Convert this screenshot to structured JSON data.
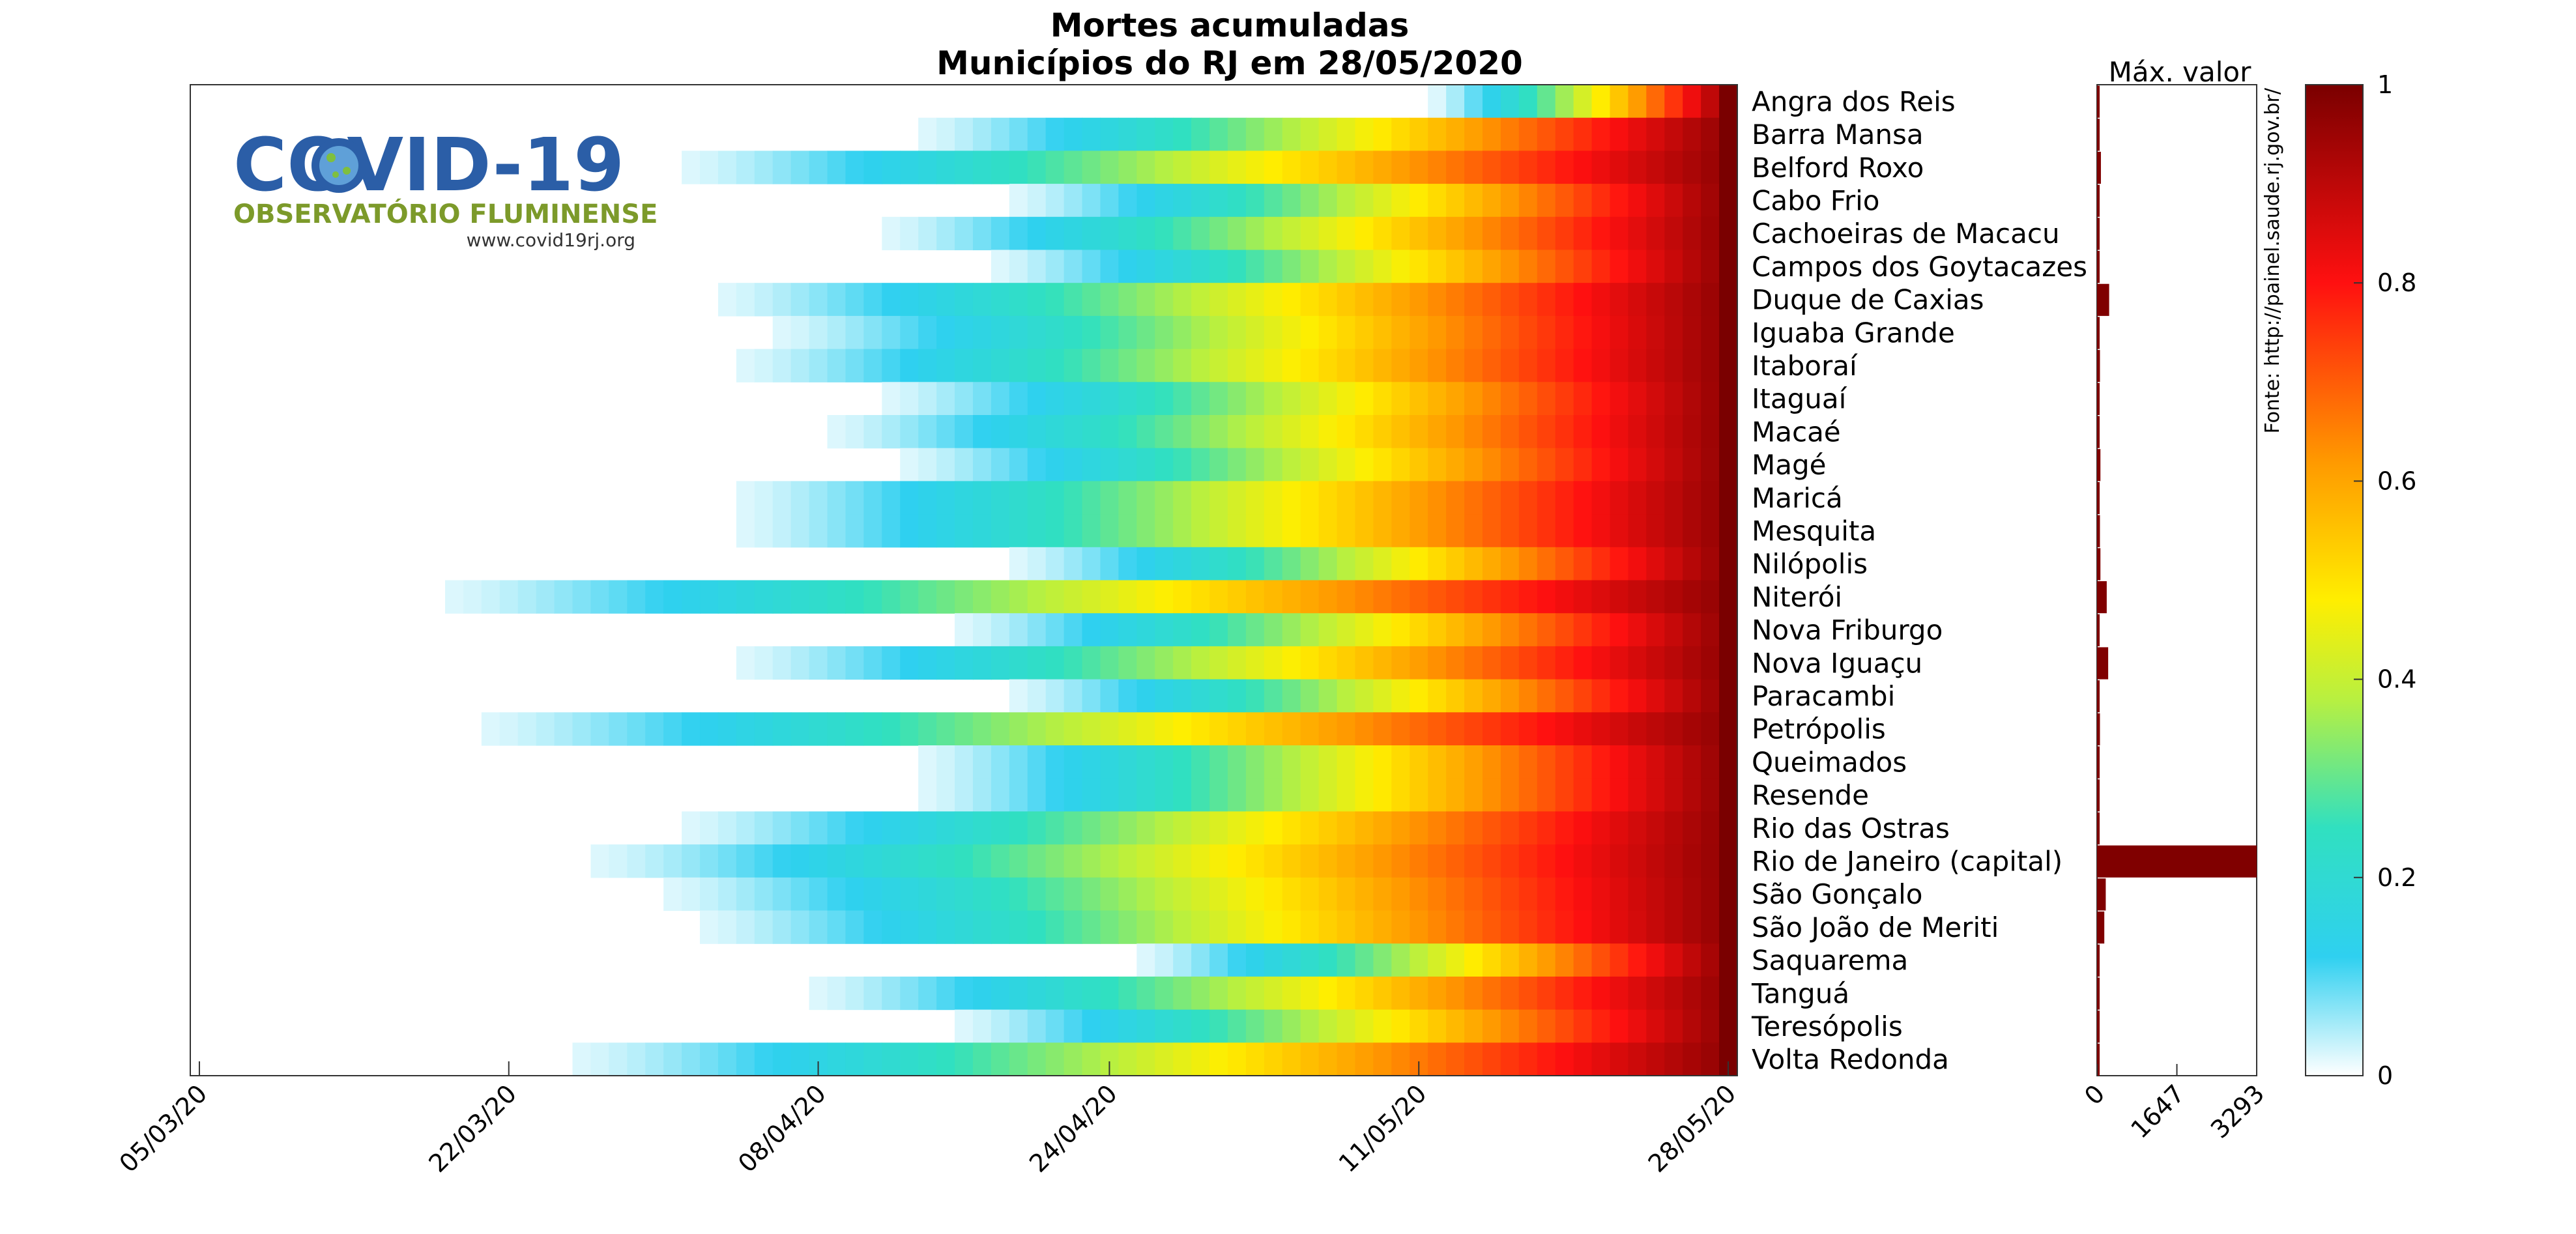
{
  "chart_data": {
    "type": "heatmap",
    "title": "Mortes acumuladas",
    "subtitle": "Municípios do RJ em 28/05/2020",
    "x_start_date": "05/03/20",
    "x_end_date": "28/05/20",
    "x_ticks": [
      "05/03/20",
      "22/03/20",
      "08/04/20",
      "24/04/20",
      "11/05/20",
      "28/05/20"
    ],
    "colorbar": {
      "min": 0,
      "max": 1,
      "ticks": [
        "0",
        "0.2",
        "0.4",
        "0.6",
        "0.8",
        "1"
      ]
    },
    "max_panel": {
      "title": "Máx. valor",
      "ticks": [
        "0",
        "1647",
        "3293"
      ],
      "xlim": [
        0,
        3293
      ],
      "bar_color": "#800000"
    },
    "source_text": "Fonte: http://painel.saude.rj.gov.br/",
    "categories": [
      "Angra dos Reis",
      "Barra Mansa",
      "Belford Roxo",
      "Cabo Frio",
      "Cachoeiras de Macacu",
      "Campos dos Goytacazes",
      "Duque de Caxias",
      "Iguaba Grande",
      "Itaboraí",
      "Itaguaí",
      "Macaé",
      "Magé",
      "Maricá",
      "Mesquita",
      "Nilópolis",
      "Niterói",
      "Nova Friburgo",
      "Nova Iguaçu",
      "Paracambi",
      "Petrópolis",
      "Queimados",
      "Resende",
      "Rio das Ostras",
      "Rio de Janeiro (capital)",
      "São Gonçalo",
      "São João de Meriti",
      "Saquarema",
      "Tanguá",
      "Teresópolis",
      "Volta Redonda"
    ],
    "series": [
      {
        "name": "Angra dos Reis",
        "first_date": "12/05/20",
        "max_value": 10
      },
      {
        "name": "Barra Mansa",
        "first_date": "14/04/20",
        "max_value": 6
      },
      {
        "name": "Belford Roxo",
        "first_date": "01/04/20",
        "max_value": 80
      },
      {
        "name": "Cabo Frio",
        "first_date": "19/04/20",
        "max_value": 12
      },
      {
        "name": "Cachoeiras de Macacu",
        "first_date": "12/04/20",
        "max_value": 8
      },
      {
        "name": "Campos dos Goytacazes",
        "first_date": "18/04/20",
        "max_value": 40
      },
      {
        "name": "Duque de Caxias",
        "first_date": "03/04/20",
        "max_value": 250
      },
      {
        "name": "Iguaba Grande",
        "first_date": "06/04/20",
        "max_value": 3
      },
      {
        "name": "Itaboraí",
        "first_date": "04/04/20",
        "max_value": 60
      },
      {
        "name": "Itaguaí",
        "first_date": "12/04/20",
        "max_value": 30
      },
      {
        "name": "Macaé",
        "first_date": "09/04/20",
        "max_value": 35
      },
      {
        "name": "Magé",
        "first_date": "13/04/20",
        "max_value": 70
      },
      {
        "name": "Maricá",
        "first_date": "04/04/20",
        "max_value": 40
      },
      {
        "name": "Mesquita",
        "first_date": "04/04/20",
        "max_value": 60
      },
      {
        "name": "Nilópolis",
        "first_date": "19/04/20",
        "max_value": 70
      },
      {
        "name": "Niterói",
        "first_date": "19/03/20",
        "max_value": 200
      },
      {
        "name": "Nova Friburgo",
        "first_date": "16/04/20",
        "max_value": 30
      },
      {
        "name": "Nova Iguaçu",
        "first_date": "04/04/20",
        "max_value": 230
      },
      {
        "name": "Paracambi",
        "first_date": "19/04/20",
        "max_value": 10
      },
      {
        "name": "Petrópolis",
        "first_date": "21/03/20",
        "max_value": 60
      },
      {
        "name": "Queimados",
        "first_date": "14/04/20",
        "max_value": 50
      },
      {
        "name": "Resende",
        "first_date": "14/04/20",
        "max_value": 15
      },
      {
        "name": "Rio das Ostras",
        "first_date": "01/04/20",
        "max_value": 15
      },
      {
        "name": "Rio de Janeiro (capital)",
        "first_date": "27/03/20",
        "max_value": 3293
      },
      {
        "name": "São Gonçalo",
        "first_date": "31/03/20",
        "max_value": 180
      },
      {
        "name": "São João de Meriti",
        "first_date": "02/04/20",
        "max_value": 150
      },
      {
        "name": "Saquarema",
        "first_date": "26/04/20",
        "max_value": 5
      },
      {
        "name": "Tanguá",
        "first_date": "08/04/20",
        "max_value": 3
      },
      {
        "name": "Teresópolis",
        "first_date": "16/04/20",
        "max_value": 40
      },
      {
        "name": "Volta Redonda",
        "first_date": "26/03/20",
        "max_value": 50
      }
    ],
    "grid": false
  },
  "logo": {
    "title": "COVID-19",
    "subtitle": "OBSERVATÓRIO FLUMINENSE",
    "url": "www.covid19rj.org"
  }
}
